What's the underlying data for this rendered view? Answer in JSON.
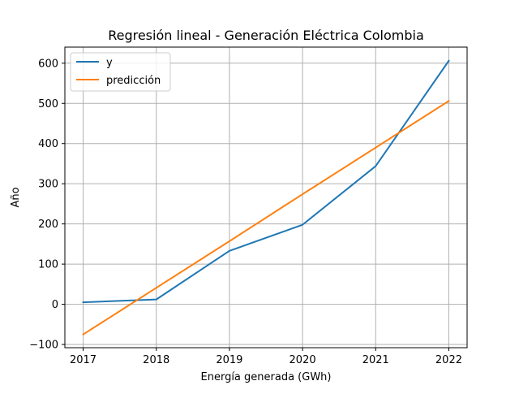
{
  "chart_data": {
    "type": "line",
    "title": "Regresión lineal - Generación Eléctrica Colombia",
    "xlabel": "Energía generada (GWh)",
    "ylabel": "Año",
    "x": [
      2017,
      2018,
      2019,
      2020,
      2021,
      2022
    ],
    "x_ticks": [
      "2017",
      "2018",
      "2019",
      "2020",
      "2021",
      "2022"
    ],
    "y_ticks": [
      -100,
      0,
      100,
      200,
      300,
      400,
      500,
      600
    ],
    "y_tick_labels": [
      "−100",
      "0",
      "100",
      "200",
      "300",
      "400",
      "500",
      "600"
    ],
    "xlim": [
      2016.75,
      2022.25
    ],
    "ylim": [
      -108,
      640
    ],
    "grid": true,
    "legend_position": "top-left",
    "series": [
      {
        "name": "y",
        "color": "#1f77b4",
        "values": [
          5,
          12,
          133,
          198,
          344,
          606
        ]
      },
      {
        "name": "predicción",
        "color": "#ff7f0e",
        "values": [
          -75,
          41,
          157,
          274,
          390,
          506
        ]
      }
    ]
  }
}
